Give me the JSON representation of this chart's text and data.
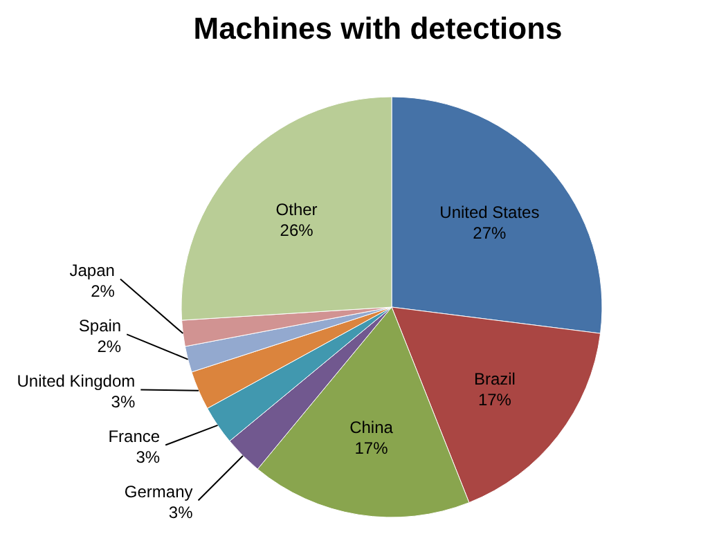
{
  "chart_data": {
    "type": "pie",
    "title": "Machines with detections",
    "categories": [
      "United States",
      "Brazil",
      "China",
      "Germany",
      "France",
      "United Kingdom",
      "Spain",
      "Japan",
      "Other"
    ],
    "values": [
      27,
      17,
      17,
      3,
      3,
      3,
      2,
      2,
      26
    ],
    "value_labels": [
      "27%",
      "17%",
      "17%",
      "3%",
      "3%",
      "3%",
      "2%",
      "2%",
      "26%"
    ],
    "colors": [
      "#4572a7",
      "#aa4643",
      "#89a54e",
      "#71588f",
      "#4198af",
      "#db843d",
      "#93a9cf",
      "#d19392",
      "#b9cd96"
    ]
  }
}
